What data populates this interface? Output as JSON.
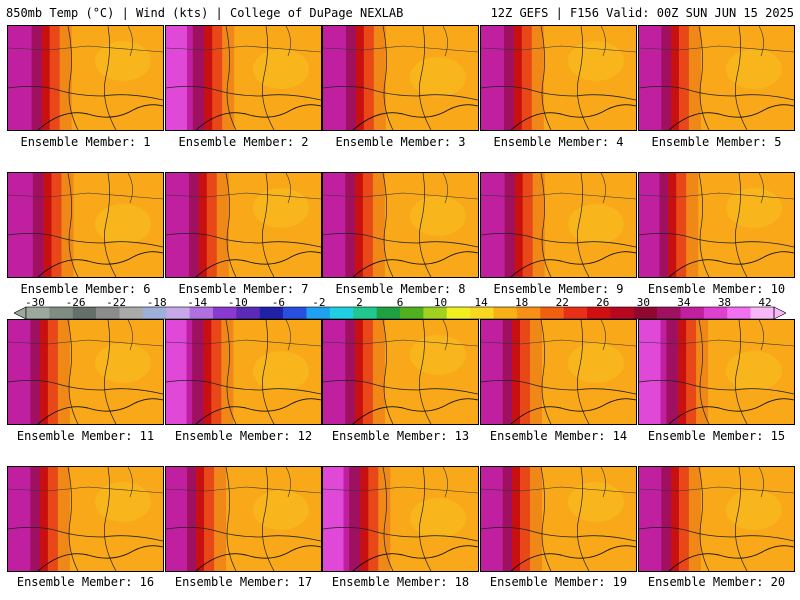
{
  "header": {
    "left": "850mb Temp (°C) | Wind (kts) | College of DuPage NEXLAB",
    "right": "12Z GEFS | F156 Valid: 00Z SUN JUN 15 2025"
  },
  "members": [
    {
      "label": "Ensemble Member: 1",
      "west_intensity": 0.65
    },
    {
      "label": "Ensemble Member: 2",
      "west_intensity": 0.9
    },
    {
      "label": "Ensemble Member: 3",
      "west_intensity": 0.6
    },
    {
      "label": "Ensemble Member: 4",
      "west_intensity": 0.6
    },
    {
      "label": "Ensemble Member: 5",
      "west_intensity": 0.55
    },
    {
      "label": "Ensemble Member: 6",
      "west_intensity": 0.75
    },
    {
      "label": "Ensemble Member: 7",
      "west_intensity": 0.6
    },
    {
      "label": "Ensemble Member: 8",
      "west_intensity": 0.55
    },
    {
      "label": "Ensemble Member: 9",
      "west_intensity": 0.65
    },
    {
      "label": "Ensemble Member: 10",
      "west_intensity": 0.4
    },
    {
      "label": "Ensemble Member: 11",
      "west_intensity": 0.55
    },
    {
      "label": "Ensemble Member: 12",
      "west_intensity": 0.85
    },
    {
      "label": "Ensemble Member: 13",
      "west_intensity": 0.55
    },
    {
      "label": "Ensemble Member: 14",
      "west_intensity": 0.5
    },
    {
      "label": "Ensemble Member: 15",
      "west_intensity": 0.95
    },
    {
      "label": "Ensemble Member: 16",
      "west_intensity": 0.55
    },
    {
      "label": "Ensemble Member: 17",
      "west_intensity": 0.45
    },
    {
      "label": "Ensemble Member: 18",
      "west_intensity": 0.85
    },
    {
      "label": "Ensemble Member: 19",
      "west_intensity": 0.5
    },
    {
      "label": "Ensemble Member: 20",
      "west_intensity": 0.55
    }
  ],
  "colorbar": {
    "labels": [
      "-30",
      "-26",
      "-22",
      "-18",
      "-14",
      "-10",
      "-6",
      "-2",
      "2",
      "6",
      "10",
      "14",
      "18",
      "22",
      "26",
      "30",
      "34",
      "38",
      "42"
    ],
    "colors": [
      "#9aa89e",
      "#7f8c82",
      "#66706a",
      "#8c8c8c",
      "#aaaaaa",
      "#9fb0d8",
      "#c8a8e8",
      "#b070e0",
      "#8a3ad0",
      "#5a2ab8",
      "#2020a8",
      "#2850e0",
      "#20a0f0",
      "#20d0e0",
      "#20c890",
      "#20a040",
      "#50b020",
      "#a0d020",
      "#f0f020",
      "#f8d820",
      "#f8b018",
      "#f89018",
      "#f06010",
      "#e83018",
      "#d01010",
      "#b80820",
      "#900830",
      "#a01060",
      "#c020a0",
      "#e040d0",
      "#f070f0",
      "#f8b8f8"
    ]
  }
}
